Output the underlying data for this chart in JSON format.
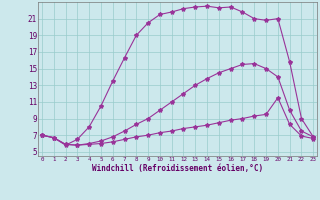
{
  "background_color": "#cce8ec",
  "grid_color": "#99cccc",
  "line_color": "#993399",
  "xlabel": "Windchill (Refroidissement éolien,°C)",
  "xlabel_color": "#660066",
  "tick_color": "#660066",
  "ylim": [
    4.5,
    23.0
  ],
  "xlim": [
    -0.3,
    23.3
  ],
  "yticks": [
    5,
    7,
    9,
    11,
    13,
    15,
    17,
    19,
    21
  ],
  "xticks": [
    0,
    1,
    2,
    3,
    4,
    5,
    6,
    7,
    8,
    9,
    10,
    11,
    12,
    13,
    14,
    15,
    16,
    17,
    18,
    19,
    20,
    21,
    22,
    23
  ],
  "curve1_x": [
    0,
    1,
    2,
    3,
    4,
    5,
    6,
    7,
    8,
    9,
    10,
    11,
    12,
    13,
    14,
    15,
    16,
    17,
    18,
    19,
    20,
    21,
    22,
    23
  ],
  "curve1_y": [
    7.0,
    6.7,
    5.8,
    6.5,
    8.0,
    10.5,
    13.5,
    16.3,
    19.0,
    20.5,
    21.5,
    21.8,
    22.2,
    22.4,
    22.5,
    22.3,
    22.4,
    21.8,
    21.0,
    20.8,
    21.0,
    15.8,
    9.0,
    6.8
  ],
  "curve2_x": [
    0,
    1,
    2,
    3,
    4,
    5,
    6,
    7,
    8,
    9,
    10,
    11,
    12,
    13,
    14,
    15,
    16,
    17,
    18,
    19,
    20,
    21,
    22,
    23
  ],
  "curve2_y": [
    7.0,
    6.7,
    5.9,
    5.8,
    6.0,
    6.3,
    6.8,
    7.5,
    8.3,
    9.0,
    10.0,
    11.0,
    12.0,
    13.0,
    13.8,
    14.5,
    15.0,
    15.5,
    15.6,
    15.0,
    14.0,
    10.0,
    7.5,
    6.8
  ],
  "curve3_x": [
    0,
    1,
    2,
    3,
    4,
    5,
    6,
    7,
    8,
    9,
    10,
    11,
    12,
    13,
    14,
    15,
    16,
    17,
    18,
    19,
    20,
    21,
    22,
    23
  ],
  "curve3_y": [
    7.0,
    6.7,
    5.9,
    5.8,
    5.9,
    6.0,
    6.2,
    6.5,
    6.8,
    7.0,
    7.3,
    7.5,
    7.8,
    8.0,
    8.2,
    8.5,
    8.8,
    9.0,
    9.3,
    9.5,
    11.5,
    8.3,
    6.9,
    6.6
  ]
}
